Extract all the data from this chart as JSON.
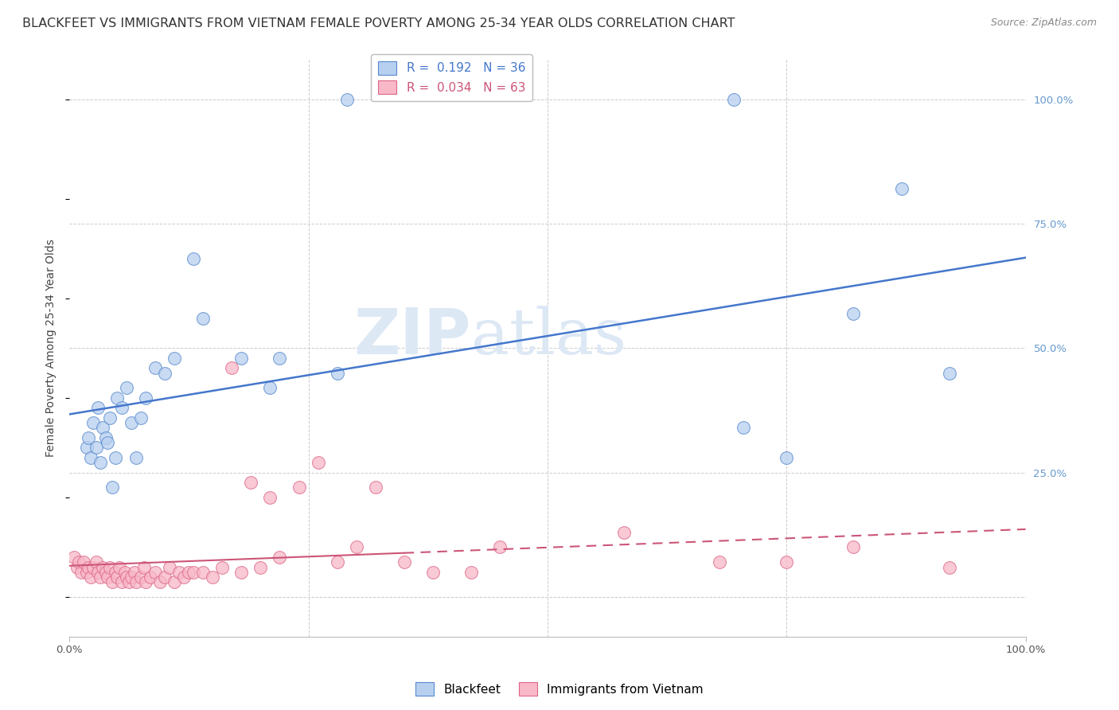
{
  "title": "BLACKFEET VS IMMIGRANTS FROM VIETNAM FEMALE POVERTY AMONG 25-34 YEAR OLDS CORRELATION CHART",
  "source": "Source: ZipAtlas.com",
  "ylabel": "Female Poverty Among 25-34 Year Olds",
  "legend_blue_label": "Blackfeet",
  "legend_pink_label": "Immigrants from Vietnam",
  "blue_R": 0.192,
  "blue_N": 36,
  "pink_R": 0.034,
  "pink_N": 63,
  "blue_color": "#b8d0f0",
  "pink_color": "#f8b8c8",
  "blue_edge_color": "#5588cc",
  "pink_edge_color": "#dd6688",
  "blue_line_color": "#4477cc",
  "pink_line_color": "#cc5577",
  "background_color": "#ffffff",
  "grid_color": "#cccccc",
  "watermark_color": "#dde8f5",
  "xlim": [
    0.0,
    1.0
  ],
  "ylim": [
    -0.08,
    1.08
  ],
  "blue_x": [
    0.018,
    0.02,
    0.022,
    0.025,
    0.028,
    0.03,
    0.032,
    0.035,
    0.038,
    0.04,
    0.042,
    0.045,
    0.048,
    0.05,
    0.055,
    0.06,
    0.065,
    0.07,
    0.075,
    0.08,
    0.09,
    0.1,
    0.11,
    0.13,
    0.14,
    0.18,
    0.21,
    0.22,
    0.28,
    0.29,
    0.695,
    0.705,
    0.75,
    0.82,
    0.87,
    0.92
  ],
  "blue_y": [
    0.3,
    0.32,
    0.28,
    0.35,
    0.3,
    0.38,
    0.27,
    0.34,
    0.32,
    0.31,
    0.36,
    0.22,
    0.28,
    0.4,
    0.38,
    0.42,
    0.35,
    0.28,
    0.36,
    0.4,
    0.46,
    0.45,
    0.48,
    0.68,
    0.56,
    0.48,
    0.42,
    0.48,
    0.45,
    1.0,
    1.0,
    0.34,
    0.28,
    0.57,
    0.82,
    0.45
  ],
  "pink_x": [
    0.005,
    0.008,
    0.01,
    0.012,
    0.015,
    0.018,
    0.02,
    0.022,
    0.025,
    0.028,
    0.03,
    0.032,
    0.035,
    0.038,
    0.04,
    0.042,
    0.045,
    0.048,
    0.05,
    0.052,
    0.055,
    0.058,
    0.06,
    0.062,
    0.065,
    0.068,
    0.07,
    0.075,
    0.078,
    0.08,
    0.085,
    0.09,
    0.095,
    0.1,
    0.105,
    0.11,
    0.115,
    0.12,
    0.125,
    0.13,
    0.14,
    0.15,
    0.16,
    0.17,
    0.18,
    0.19,
    0.2,
    0.21,
    0.22,
    0.24,
    0.26,
    0.28,
    0.3,
    0.32,
    0.35,
    0.38,
    0.42,
    0.45,
    0.58,
    0.68,
    0.75,
    0.82,
    0.92
  ],
  "pink_y": [
    0.08,
    0.06,
    0.07,
    0.05,
    0.07,
    0.05,
    0.06,
    0.04,
    0.06,
    0.07,
    0.05,
    0.04,
    0.06,
    0.05,
    0.04,
    0.06,
    0.03,
    0.05,
    0.04,
    0.06,
    0.03,
    0.05,
    0.04,
    0.03,
    0.04,
    0.05,
    0.03,
    0.04,
    0.06,
    0.03,
    0.04,
    0.05,
    0.03,
    0.04,
    0.06,
    0.03,
    0.05,
    0.04,
    0.05,
    0.05,
    0.05,
    0.04,
    0.06,
    0.46,
    0.05,
    0.23,
    0.06,
    0.2,
    0.08,
    0.22,
    0.27,
    0.07,
    0.1,
    0.22,
    0.07,
    0.05,
    0.05,
    0.1,
    0.13,
    0.07,
    0.07,
    0.1,
    0.06
  ],
  "title_fontsize": 11.5,
  "axis_label_fontsize": 10,
  "tick_fontsize": 9.5,
  "legend_fontsize": 11,
  "source_fontsize": 9
}
